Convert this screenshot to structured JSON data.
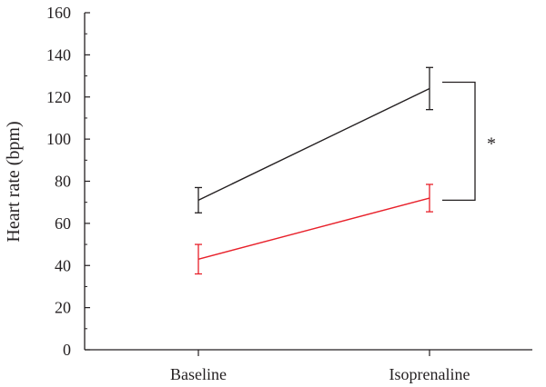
{
  "chart_data": {
    "type": "line",
    "title": "",
    "ylabel": "Heart rate (bpm)",
    "xlabel": "",
    "categories": [
      "Baseline",
      "Isoprenaline"
    ],
    "ylim": [
      0,
      160
    ],
    "yticks": [
      "0",
      "20",
      "40",
      "60",
      "80",
      "100",
      "120",
      "140",
      "160"
    ],
    "series": [
      {
        "color": "#231f20",
        "values": [
          71,
          124
        ],
        "error": [
          6,
          10
        ]
      },
      {
        "color": "#e8202a",
        "values": [
          43,
          72
        ],
        "error": [
          7,
          6.5
        ]
      }
    ],
    "annotation": {
      "text": "*",
      "between_series": [
        0,
        1
      ],
      "at_category": 1
    }
  }
}
